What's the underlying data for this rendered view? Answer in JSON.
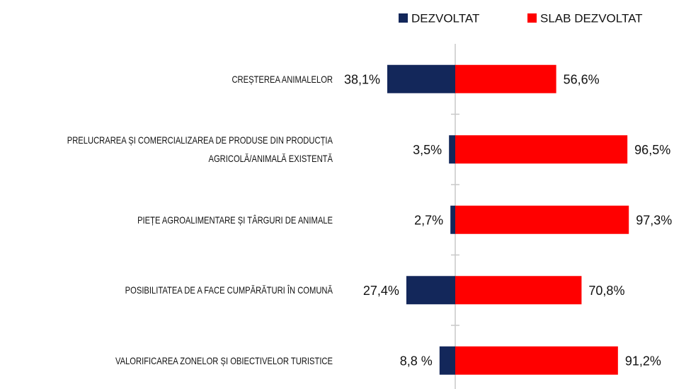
{
  "chart_data": {
    "type": "diverging_bar",
    "categories": [
      "CREȘTEREA ANIMALELOR",
      "PRELUCRAREA ȘI COMERCIALIZAREA DE PRODUSE DIN PRODUCȚIA AGRICOLĂ/ANIMALĂ EXISTENTĂ",
      "PIEȚE AGROALIMENTARE ȘI TÂRGURI DE ANIMALE",
      "POSIBILITATEA DE A FACE CUMPĂRĂTURI ÎN COMUNĂ",
      "VALORIFICAREA ZONELOR ȘI OBIECTIVELOR TURISTICE"
    ],
    "series": [
      {
        "name": "DEZVOLTAT",
        "color": "#13275a",
        "values": [
          38.1,
          3.5,
          2.7,
          27.4,
          8.8
        ],
        "value_labels": [
          "38,1%",
          "3,5%",
          "2,7%",
          "27,4%",
          "8,8 %"
        ]
      },
      {
        "name": "SLAB DEZVOLTAT",
        "color": "#ff0000",
        "values": [
          56.6,
          96.5,
          97.3,
          70.8,
          91.2
        ],
        "value_labels": [
          "56,6%",
          "96,5%",
          "97,3%",
          "70,8%",
          "91,2%"
        ]
      }
    ],
    "legend": "top"
  }
}
